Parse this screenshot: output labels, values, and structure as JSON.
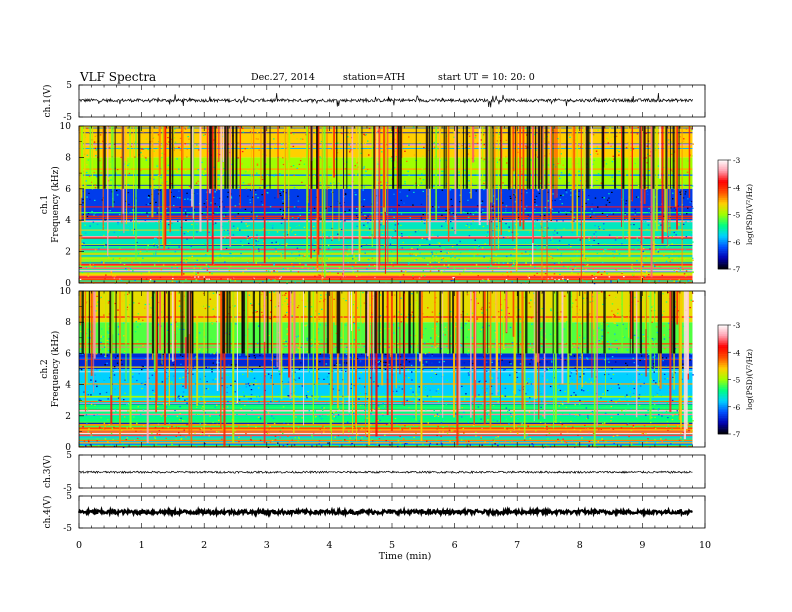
{
  "header": {
    "title": "VLF  Spectra",
    "date": "Dec.27, 2014",
    "station": "station=ATH",
    "start": "start  UT =   10: 20: 0"
  },
  "chart_data": [
    {
      "type": "line",
      "panel": "ch1-waveform",
      "ylabel": "ch.1(V)",
      "ylim": [
        -5,
        5
      ],
      "yticks": [
        "5",
        "-5"
      ],
      "xlim": [
        0,
        10
      ],
      "description_values": {
        "mean_V": 0.2,
        "noise_amplitude_V": 0.5,
        "spike_amplitude_V": 2.0
      },
      "x_extent_min": 9.8
    },
    {
      "type": "heatmap",
      "panel": "ch1-spectrogram",
      "ylabel_lines": [
        "ch.1",
        "Frequency  (kHz)"
      ],
      "ylim": [
        0,
        10
      ],
      "yticks": [
        "0",
        "2",
        "4",
        "6",
        "8",
        "10"
      ],
      "xlim": [
        0,
        10
      ],
      "x_extent_min": 9.8,
      "colorbar": {
        "label": "log(PSD)(V²/Hz)",
        "range": [
          -7,
          -3
        ],
        "ticks": [
          "-3",
          "-4",
          "-5",
          "-6",
          "-7"
        ],
        "colors": [
          "#000000",
          "#0000b0",
          "#0050ff",
          "#00d0ff",
          "#00ff80",
          "#a0ff00",
          "#ffd000",
          "#ff5000",
          "#ff0000",
          "#ffa0b0",
          "#ffffff"
        ]
      },
      "bands": [
        {
          "from_khz": 0.0,
          "to_khz": 0.25,
          "level": -5.5
        },
        {
          "from_khz": 0.25,
          "to_khz": 0.45,
          "level": -3.2
        },
        {
          "from_khz": 0.45,
          "to_khz": 0.9,
          "level": -4.6
        },
        {
          "from_khz": 0.9,
          "to_khz": 2.0,
          "level": -5.2
        },
        {
          "from_khz": 2.0,
          "to_khz": 4.0,
          "level": -5.6
        },
        {
          "from_khz": 4.0,
          "to_khz": 6.0,
          "level": -6.3
        },
        {
          "from_khz": 6.0,
          "to_khz": 8.0,
          "level": -5.0
        },
        {
          "from_khz": 8.0,
          "to_khz": 10.0,
          "level": -4.6
        }
      ]
    },
    {
      "type": "heatmap",
      "panel": "ch2-spectrogram",
      "ylabel_lines": [
        "ch.2",
        "Frequency  (kHz)"
      ],
      "ylim": [
        0,
        10
      ],
      "yticks": [
        "0",
        "2",
        "4",
        "6",
        "8",
        "10"
      ],
      "xlim": [
        0,
        10
      ],
      "x_extent_min": 9.8,
      "colorbar": {
        "label": "log(PSD)(V²/Hz)",
        "range": [
          -7,
          -3
        ],
        "ticks": [
          "-3",
          "-4",
          "-5",
          "-6",
          "-7"
        ]
      },
      "bands": [
        {
          "from_khz": 0.0,
          "to_khz": 0.3,
          "level": -6.0
        },
        {
          "from_khz": 0.3,
          "to_khz": 1.5,
          "level": -4.4
        },
        {
          "from_khz": 1.5,
          "to_khz": 3.0,
          "level": -5.4
        },
        {
          "from_khz": 3.0,
          "to_khz": 5.0,
          "level": -5.8
        },
        {
          "from_khz": 5.0,
          "to_khz": 6.0,
          "level": -6.4
        },
        {
          "from_khz": 6.0,
          "to_khz": 8.0,
          "level": -5.2
        },
        {
          "from_khz": 8.0,
          "to_khz": 10.0,
          "level": -4.7
        }
      ]
    },
    {
      "type": "line",
      "panel": "ch3-waveform",
      "ylabel": "ch.3(V)",
      "ylim": [
        -5,
        5
      ],
      "yticks": [
        "5",
        "-5"
      ],
      "xlim": [
        0,
        10
      ],
      "description_values": {
        "mean_V": -0.2,
        "noise_amplitude_V": 0.3
      },
      "x_extent_min": 9.8
    },
    {
      "type": "line",
      "panel": "ch4-waveform",
      "ylabel": "ch.4(V)",
      "ylim": [
        -5,
        5
      ],
      "yticks": [
        "5",
        "-5"
      ],
      "xlim": [
        0,
        10
      ],
      "description_values": {
        "mean_V": 0.0,
        "noise_amplitude_V": 0.6
      },
      "x_extent_min": 9.8
    }
  ],
  "xaxis": {
    "label": "Time  (min)",
    "ticks": [
      "0",
      "1",
      "2",
      "3",
      "4",
      "5",
      "6",
      "7",
      "8",
      "9",
      "10"
    ]
  }
}
